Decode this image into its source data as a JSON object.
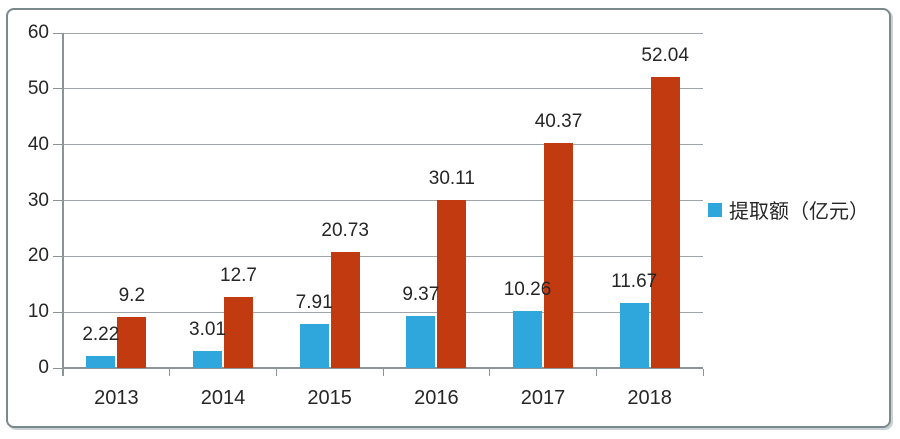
{
  "chart_data": {
    "type": "bar",
    "title": "",
    "categories": [
      "2013",
      "2014",
      "2015",
      "2016",
      "2017",
      "2018"
    ],
    "series": [
      {
        "name": "提取额（亿元）",
        "color": "#2FA7DD",
        "values": [
          2.22,
          3.01,
          7.91,
          9.37,
          10.26,
          11.67
        ],
        "labels": [
          "2.22",
          "3.01",
          "7.91",
          "9.37",
          "10.26",
          "11.67"
        ],
        "in_legend": true
      },
      {
        "name": "",
        "color": "#C23A10",
        "values": [
          9.2,
          12.7,
          20.73,
          30.11,
          40.37,
          52.04
        ],
        "labels": [
          "9.2",
          "12.7",
          "20.73",
          "30.11",
          "40.37",
          "52.04"
        ],
        "in_legend": false
      }
    ],
    "ylim": [
      0,
      60
    ],
    "yticks": [
      0,
      10,
      20,
      30,
      40,
      50,
      60
    ],
    "ytick_labels": [
      "0",
      "10",
      "20",
      "30",
      "40",
      "50",
      "60"
    ],
    "xlabel": "",
    "ylabel": "",
    "grid": true,
    "legend_position": "right",
    "legend": [
      {
        "label": "提取额（亿元）",
        "color": "#2FA7DD"
      }
    ]
  },
  "colors": {
    "series_blue": "#2FA7DD",
    "series_red": "#C23A10",
    "gridline": "#9EA6A9",
    "axis": "#8A9396",
    "frame_border": "#7A898B",
    "label_text": "#262626"
  }
}
